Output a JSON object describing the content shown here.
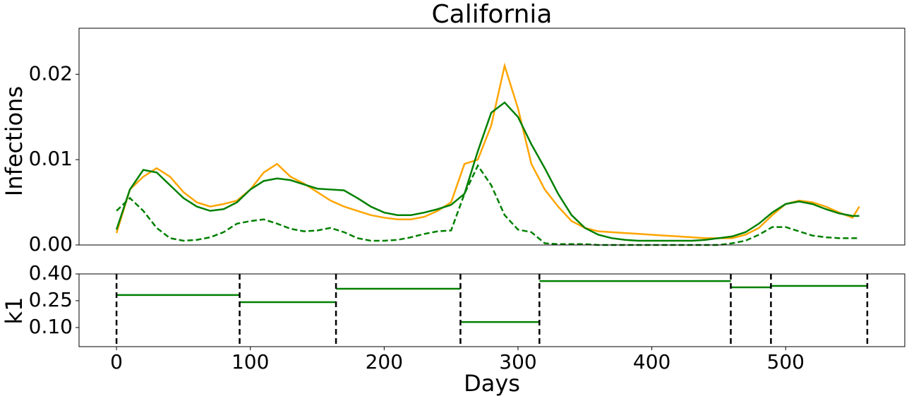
{
  "chart_data": [
    {
      "type": "line",
      "title": "California",
      "ylabel": "Infections",
      "x": [
        0,
        10,
        20,
        30,
        40,
        50,
        60,
        70,
        80,
        90,
        100,
        110,
        120,
        130,
        140,
        150,
        160,
        170,
        180,
        190,
        200,
        210,
        220,
        230,
        240,
        250,
        260,
        270,
        280,
        290,
        300,
        310,
        320,
        330,
        340,
        350,
        360,
        370,
        380,
        390,
        400,
        410,
        420,
        430,
        440,
        450,
        460,
        470,
        480,
        490,
        500,
        510,
        520,
        530,
        540,
        550,
        555
      ],
      "series": [
        {
          "color": "orange",
          "linestyle": "solid",
          "values": [
            0.0014,
            0.0065,
            0.008,
            0.009,
            0.008,
            0.0062,
            0.005,
            0.0045,
            0.0048,
            0.0052,
            0.0065,
            0.0085,
            0.0095,
            0.008,
            0.0072,
            0.0062,
            0.0052,
            0.0045,
            0.004,
            0.0035,
            0.0032,
            0.003,
            0.003,
            0.0033,
            0.004,
            0.005,
            0.0095,
            0.01,
            0.014,
            0.021,
            0.016,
            0.0095,
            0.0065,
            0.0045,
            0.0028,
            0.002,
            0.0016,
            0.0015,
            0.0014,
            0.0013,
            0.0012,
            0.0011,
            0.001,
            0.0009,
            0.0008,
            0.0008,
            0.0008,
            0.0012,
            0.002,
            0.0035,
            0.0048,
            0.0052,
            0.005,
            0.0045,
            0.0038,
            0.0032,
            0.0045
          ]
        },
        {
          "color": "green",
          "linestyle": "solid",
          "values": [
            0.0018,
            0.0065,
            0.0088,
            0.0085,
            0.007,
            0.0055,
            0.0045,
            0.004,
            0.0042,
            0.005,
            0.0065,
            0.0075,
            0.0078,
            0.0076,
            0.0071,
            0.0066,
            0.0065,
            0.0064,
            0.0055,
            0.0045,
            0.0038,
            0.0035,
            0.0035,
            0.0038,
            0.0042,
            0.0047,
            0.006,
            0.011,
            0.0155,
            0.0167,
            0.015,
            0.0118,
            0.009,
            0.006,
            0.0035,
            0.002,
            0.0012,
            0.0008,
            0.0006,
            0.0005,
            0.0005,
            0.0005,
            0.0005,
            0.0005,
            0.0006,
            0.0008,
            0.001,
            0.0015,
            0.0025,
            0.0038,
            0.0048,
            0.0051,
            0.0048,
            0.0042,
            0.0037,
            0.0034,
            0.0034
          ]
        },
        {
          "color": "green",
          "linestyle": "dashed",
          "values": [
            0.004,
            0.0055,
            0.004,
            0.002,
            0.0008,
            0.0005,
            0.0006,
            0.0009,
            0.0015,
            0.0025,
            0.0028,
            0.003,
            0.0025,
            0.0019,
            0.0016,
            0.0017,
            0.002,
            0.0015,
            0.0008,
            0.0005,
            0.0005,
            0.0006,
            0.0009,
            0.0013,
            0.0016,
            0.0017,
            0.006,
            0.0093,
            0.007,
            0.0035,
            0.0018,
            0.0015,
            0.0002,
            0.0001,
            0.0001,
            0.0001,
            0,
            0,
            0,
            0,
            0,
            0,
            0,
            0,
            0,
            0,
            0.0002,
            0.0005,
            0.0012,
            0.0021,
            0.0021,
            0.0016,
            0.0011,
            0.0009,
            0.0008,
            0.0008,
            0.0008
          ]
        }
      ],
      "xlim": [
        -28,
        589
      ],
      "ylim": [
        0,
        0.0254
      ],
      "yticks": [
        {
          "value": 0,
          "label": "0.00"
        },
        0.01,
        0.02
      ]
    },
    {
      "type": "step",
      "ylabel": "k1",
      "xlabel": "Days",
      "breakpoints": [
        0,
        92,
        164,
        257,
        316,
        459,
        489,
        561
      ],
      "values": [
        0.282,
        0.242,
        0.317,
        0.131,
        0.36,
        0.325,
        0.333
      ],
      "color": "green",
      "breakpoint_color": "black",
      "xlim": [
        -28,
        589
      ],
      "ylim": [
        -0.007,
        0.4
      ],
      "xticks": [
        0,
        100,
        200,
        300,
        400,
        500
      ],
      "yticks": [
        {
          "value": 0.4,
          "label": "0.40"
        },
        0.25,
        {
          "value": 0.1,
          "label": "0.10"
        }
      ]
    }
  ]
}
